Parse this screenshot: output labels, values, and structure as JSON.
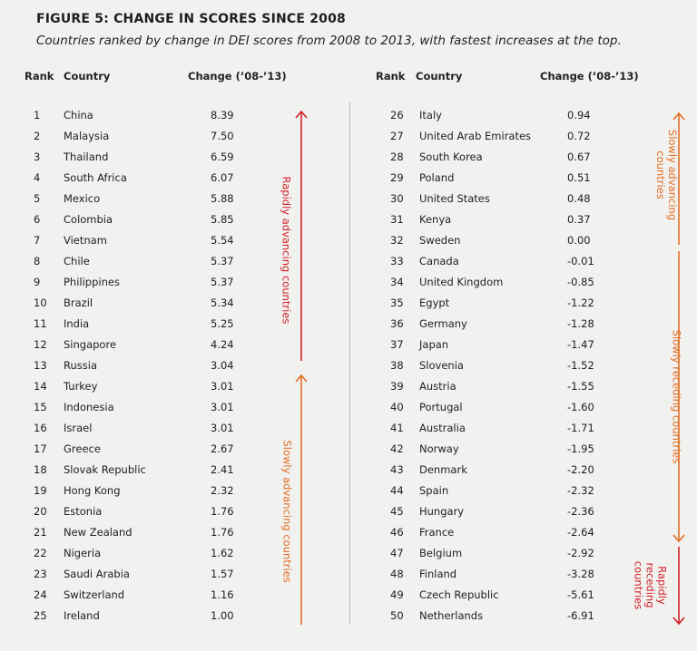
{
  "title": "FIGURE 5: CHANGE IN SCORES SINCE 2008",
  "subtitle": "Countries ranked by change in DEI scores from 2008 to 2013, with fastest increases at the top.",
  "headers": {
    "rank": "Rank",
    "country": "Country",
    "change": "Change (’08-’13)"
  },
  "colors": {
    "red": "#d21f26",
    "orange": "#e36e22",
    "background": "#f1f1f0"
  },
  "left_rows": [
    {
      "rank": "1",
      "country": "China",
      "change": "8.39"
    },
    {
      "rank": "2",
      "country": "Malaysia",
      "change": "7.50"
    },
    {
      "rank": "3",
      "country": "Thailand",
      "change": "6.59"
    },
    {
      "rank": "4",
      "country": "South Africa",
      "change": "6.07"
    },
    {
      "rank": "5",
      "country": "Mexico",
      "change": "5.88"
    },
    {
      "rank": "6",
      "country": "Colombia",
      "change": "5.85"
    },
    {
      "rank": "7",
      "country": "Vietnam",
      "change": "5.54"
    },
    {
      "rank": "8",
      "country": "Chile",
      "change": "5.37"
    },
    {
      "rank": "9",
      "country": "Philippines",
      "change": "5.37"
    },
    {
      "rank": "10",
      "country": "Brazil",
      "change": "5.34"
    },
    {
      "rank": "11",
      "country": "India",
      "change": "5.25"
    },
    {
      "rank": "12",
      "country": "Singapore",
      "change": "4.24"
    },
    {
      "rank": "13",
      "country": "Russia",
      "change": "3.04"
    },
    {
      "rank": "14",
      "country": "Turkey",
      "change": "3.01"
    },
    {
      "rank": "15",
      "country": "Indonesia",
      "change": "3.01"
    },
    {
      "rank": "16",
      "country": "Israel",
      "change": "3.01"
    },
    {
      "rank": "17",
      "country": "Greece",
      "change": "2.67"
    },
    {
      "rank": "18",
      "country": "Slovak Republic",
      "change": "2.41"
    },
    {
      "rank": "19",
      "country": "Hong Kong",
      "change": "2.32"
    },
    {
      "rank": "20",
      "country": "Estonia",
      "change": "1.76"
    },
    {
      "rank": "21",
      "country": "New Zealand",
      "change": "1.76"
    },
    {
      "rank": "22",
      "country": "Nigeria",
      "change": "1.62"
    },
    {
      "rank": "23",
      "country": "Saudi Arabia",
      "change": "1.57"
    },
    {
      "rank": "24",
      "country": "Switzerland",
      "change": "1.16"
    },
    {
      "rank": "25",
      "country": "Ireland",
      "change": "1.00"
    }
  ],
  "right_rows": [
    {
      "rank": "26",
      "country": "Italy",
      "change": "0.94"
    },
    {
      "rank": "27",
      "country": "United Arab Emirates",
      "change": "0.72"
    },
    {
      "rank": "28",
      "country": "South Korea",
      "change": "0.67"
    },
    {
      "rank": "29",
      "country": "Poland",
      "change": "0.51"
    },
    {
      "rank": "30",
      "country": "United States",
      "change": "0.48"
    },
    {
      "rank": "31",
      "country": "Kenya",
      "change": "0.37"
    },
    {
      "rank": "32",
      "country": "Sweden",
      "change": "0.00"
    },
    {
      "rank": "33",
      "country": "Canada",
      "change": "-0.01"
    },
    {
      "rank": "34",
      "country": "United Kingdom",
      "change": "-0.85"
    },
    {
      "rank": "35",
      "country": "Egypt",
      "change": "-1.22"
    },
    {
      "rank": "36",
      "country": "Germany",
      "change": "-1.28"
    },
    {
      "rank": "37",
      "country": "Japan",
      "change": "-1.47"
    },
    {
      "rank": "38",
      "country": "Slovenia",
      "change": "-1.52"
    },
    {
      "rank": "39",
      "country": "Austria",
      "change": "-1.55"
    },
    {
      "rank": "40",
      "country": "Portugal",
      "change": "-1.60"
    },
    {
      "rank": "41",
      "country": "Australia",
      "change": "-1.71"
    },
    {
      "rank": "42",
      "country": "Norway",
      "change": "-1.95"
    },
    {
      "rank": "43",
      "country": "Denmark",
      "change": "-2.20"
    },
    {
      "rank": "44",
      "country": "Spain",
      "change": "-2.32"
    },
    {
      "rank": "45",
      "country": "Hungary",
      "change": "-2.36"
    },
    {
      "rank": "46",
      "country": "France",
      "change": "-2.64"
    },
    {
      "rank": "47",
      "country": "Belgium",
      "change": "-2.92"
    },
    {
      "rank": "48",
      "country": "Finland",
      "change": "-3.28"
    },
    {
      "rank": "49",
      "country": "Czech Republic",
      "change": "-5.61"
    },
    {
      "rank": "50",
      "country": "Netherlands",
      "change": "-6.91"
    }
  ],
  "annotations": {
    "rapidly_advancing": "Rapidly advancing countries",
    "slowly_advancing_left": "Slowly advancing countries",
    "slowly_advancing_right_line1": "Slowly advancing",
    "slowly_advancing_right_line2": "countries",
    "slowly_receding": "Slowly receding countries",
    "rapidly_receding_line1": "Rapidly",
    "rapidly_receding_line2": "receding",
    "rapidly_receding_line3": "countries"
  }
}
